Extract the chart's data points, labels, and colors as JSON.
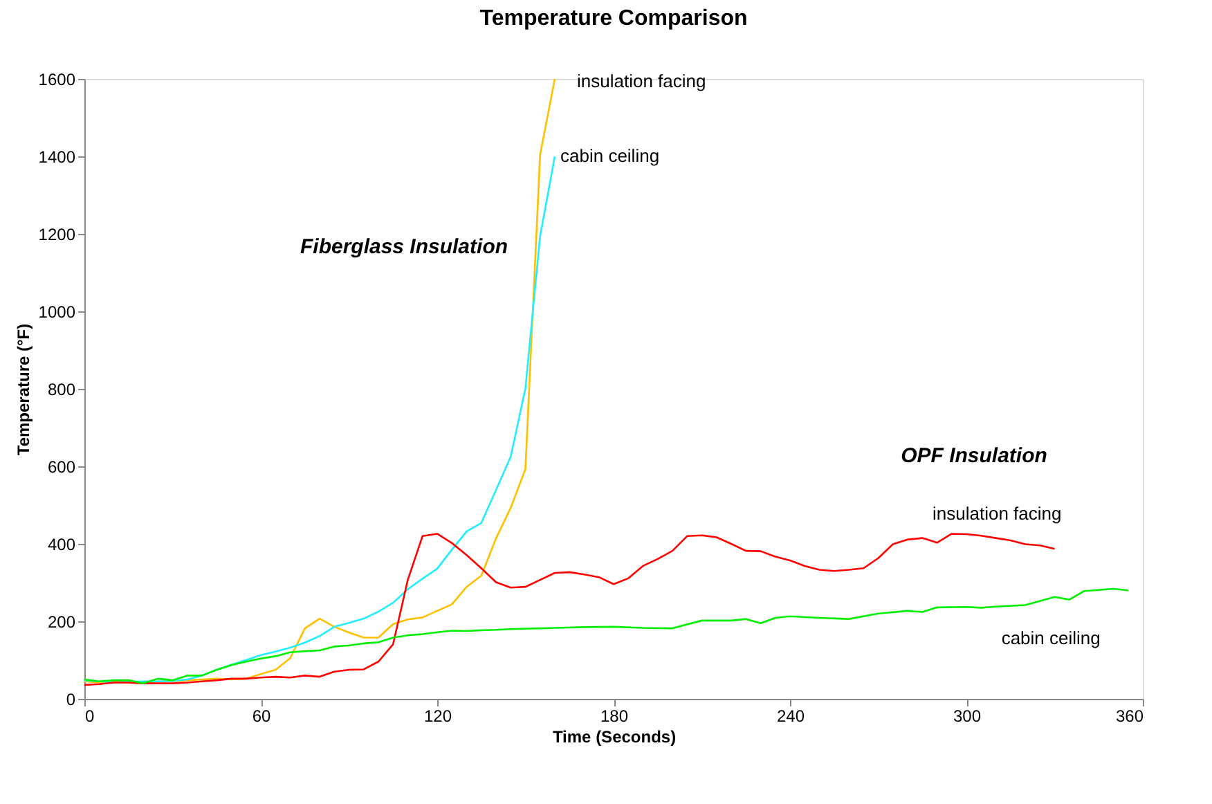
{
  "chart_data": {
    "type": "line",
    "title": "Temperature Comparison",
    "xlabel": "Time (Seconds)",
    "ylabel": "Temperature (°F)",
    "xlim": [
      0,
      360
    ],
    "xticks": [
      0,
      60,
      120,
      180,
      240,
      300,
      360
    ],
    "ylim": [
      0,
      1600
    ],
    "yticks": [
      0,
      200,
      400,
      600,
      800,
      1000,
      1200,
      1400,
      1600
    ],
    "grid": false,
    "marker": "none",
    "line_style": "solid",
    "series": [
      {
        "name": "insulation facing",
        "color": "#ffc000",
        "x": [
          0,
          5,
          10,
          15,
          20,
          25,
          30,
          35,
          40,
          45,
          50,
          55,
          60,
          65,
          70,
          75,
          80,
          85,
          90,
          95,
          100,
          105,
          110,
          115,
          120,
          125,
          130,
          135,
          140,
          145,
          150,
          155,
          160
        ],
        "values": [
          45,
          42,
          45,
          42,
          40,
          45,
          45,
          48,
          50,
          52,
          50,
          52,
          64,
          75,
          105,
          182,
          207,
          186,
          171,
          158,
          158,
          193,
          205,
          210,
          227,
          244,
          289,
          318,
          414,
          493,
          593,
          1404,
          1600
        ]
      },
      {
        "name": "cabin ceiling",
        "color": "#22eeff",
        "x": [
          0,
          5,
          10,
          15,
          20,
          25,
          30,
          35,
          40,
          45,
          50,
          55,
          60,
          65,
          70,
          75,
          80,
          85,
          90,
          95,
          100,
          105,
          110,
          115,
          120,
          125,
          130,
          135,
          140,
          145,
          150,
          155,
          160
        ],
        "values": [
          48,
          45,
          42,
          44,
          45,
          45,
          46,
          50,
          60,
          75,
          88,
          100,
          113,
          122,
          132,
          145,
          162,
          186,
          196,
          207,
          225,
          248,
          283,
          310,
          336,
          385,
          432,
          454,
          539,
          625,
          801,
          1194,
          1400
        ]
      },
      {
        "name": "insulation facing",
        "color": "#ff0000",
        "x": [
          0,
          5,
          10,
          15,
          20,
          25,
          30,
          35,
          40,
          45,
          50,
          55,
          60,
          65,
          70,
          75,
          80,
          85,
          90,
          95,
          100,
          105,
          110,
          115,
          120,
          125,
          130,
          135,
          140,
          145,
          150,
          155,
          160,
          165,
          170,
          175,
          180,
          185,
          190,
          195,
          200,
          205,
          210,
          215,
          220,
          225,
          230,
          235,
          240,
          245,
          250,
          255,
          260,
          265,
          270,
          275,
          280,
          285,
          290,
          295,
          300,
          305,
          310,
          315,
          320,
          325,
          330
        ],
        "values": [
          36,
          38,
          42,
          42,
          40,
          40,
          40,
          42,
          45,
          48,
          52,
          52,
          55,
          57,
          55,
          60,
          57,
          70,
          75,
          76,
          96,
          141,
          307,
          420,
          426,
          402,
          371,
          337,
          301,
          287,
          289,
          307,
          325,
          327,
          321,
          314,
          296,
          311,
          343,
          361,
          382,
          420,
          422,
          417,
          400,
          382,
          381,
          367,
          357,
          343,
          333,
          330,
          333,
          337,
          363,
          399,
          411,
          415,
          403,
          426,
          425,
          421,
          415,
          409,
          399,
          396,
          387
        ]
      },
      {
        "name": "cabin ceiling",
        "color": "#00ee00",
        "x": [
          0,
          5,
          10,
          15,
          20,
          25,
          30,
          35,
          40,
          45,
          50,
          55,
          60,
          65,
          70,
          75,
          80,
          85,
          90,
          95,
          100,
          105,
          110,
          115,
          120,
          125,
          130,
          135,
          140,
          145,
          150,
          155,
          160,
          170,
          180,
          190,
          200,
          210,
          220,
          225,
          230,
          235,
          240,
          250,
          260,
          270,
          280,
          285,
          290,
          300,
          305,
          310,
          320,
          330,
          335,
          340,
          350,
          355
        ],
        "values": [
          50,
          45,
          48,
          48,
          40,
          52,
          48,
          60,
          60,
          75,
          87,
          96,
          104,
          110,
          120,
          123,
          125,
          135,
          138,
          143,
          146,
          158,
          164,
          167,
          172,
          176,
          175,
          177,
          178,
          180,
          181,
          182,
          183,
          185,
          186,
          183,
          182,
          202,
          202,
          206,
          195,
          209,
          213,
          209,
          206,
          220,
          227,
          224,
          236,
          237,
          235,
          238,
          242,
          263,
          256,
          278,
          284,
          280
        ]
      }
    ],
    "annotations": [
      "Fiberglass Insulation",
      "OPF Insulation"
    ]
  }
}
